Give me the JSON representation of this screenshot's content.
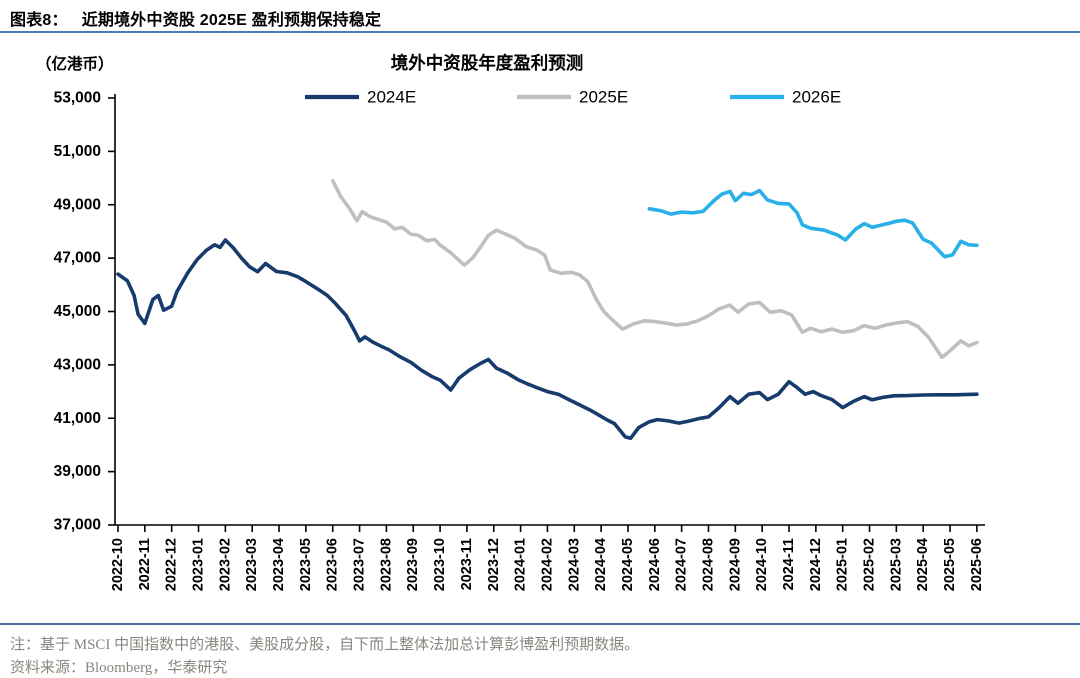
{
  "figure": {
    "caption_label": "图表8：",
    "caption_text": "近期境外中资股 2025E 盈利预期保持稳定",
    "unit_label": "（亿港币）",
    "chart_title": "境外中资股年度盈利预测",
    "note": "注：基于 MSCI 中国指数中的港股、美股成分股，自下而上整体法加总计算彭博盈利预期数据。",
    "source": "资料来源：Bloomberg，华泰研究"
  },
  "colors": {
    "navy": "#173b6c",
    "gray": "#bfbfbf",
    "cyan": "#29b0e8",
    "caption_rule": "#4a7cba",
    "note_rule": "#4d6f9e",
    "note_text": "#87867f",
    "axis": "#000000"
  },
  "chart_data": {
    "type": "line",
    "title": "境外中资股年度盈利预测",
    "ylabel": "（亿港币）",
    "ylim": [
      37000,
      53000
    ],
    "ytick_step": 2000,
    "ytick_labels": [
      "37,000",
      "39,000",
      "41,000",
      "43,000",
      "45,000",
      "47,000",
      "49,000",
      "51,000",
      "53,000"
    ],
    "grid": false,
    "legend_position": "top",
    "x_months": [
      "2022-10",
      "2022-11",
      "2022-12",
      "2023-01",
      "2023-02",
      "2023-03",
      "2023-04",
      "2023-05",
      "2023-06",
      "2023-07",
      "2023-08",
      "2023-09",
      "2023-10",
      "2023-11",
      "2023-12",
      "2024-01",
      "2024-02",
      "2024-03",
      "2024-04",
      "2024-05",
      "2024-06",
      "2024-07",
      "2024-08",
      "2024-09",
      "2024-10",
      "2024-11",
      "2024-12",
      "2025-01",
      "2025-02",
      "2025-03",
      "2025-04",
      "2025-05",
      "2025-06"
    ],
    "x_unit": "month_index_from_2022-10",
    "series": [
      {
        "name": "2024E",
        "color_key": "navy",
        "points": [
          [
            0,
            46400
          ],
          [
            0.35,
            46150
          ],
          [
            0.6,
            45600
          ],
          [
            0.75,
            44900
          ],
          [
            1.0,
            44550
          ],
          [
            1.3,
            45450
          ],
          [
            1.5,
            45600
          ],
          [
            1.7,
            45050
          ],
          [
            2.0,
            45200
          ],
          [
            2.2,
            45750
          ],
          [
            2.6,
            46450
          ],
          [
            2.95,
            46950
          ],
          [
            3.3,
            47300
          ],
          [
            3.6,
            47500
          ],
          [
            3.8,
            47400
          ],
          [
            4.0,
            47680
          ],
          [
            4.3,
            47380
          ],
          [
            4.6,
            47000
          ],
          [
            4.9,
            46680
          ],
          [
            5.2,
            46490
          ],
          [
            5.5,
            46800
          ],
          [
            5.9,
            46500
          ],
          [
            6.3,
            46450
          ],
          [
            6.7,
            46300
          ],
          [
            7.0,
            46120
          ],
          [
            7.4,
            45870
          ],
          [
            7.8,
            45600
          ],
          [
            8.1,
            45300
          ],
          [
            8.5,
            44850
          ],
          [
            8.8,
            44300
          ],
          [
            9.0,
            43900
          ],
          [
            9.2,
            44050
          ],
          [
            9.5,
            43850
          ],
          [
            9.8,
            43700
          ],
          [
            10.1,
            43560
          ],
          [
            10.5,
            43310
          ],
          [
            10.9,
            43100
          ],
          [
            11.3,
            42800
          ],
          [
            11.7,
            42560
          ],
          [
            12.0,
            42430
          ],
          [
            12.4,
            42060
          ],
          [
            12.7,
            42500
          ],
          [
            13.1,
            42810
          ],
          [
            13.5,
            43050
          ],
          [
            13.8,
            43200
          ],
          [
            14.1,
            42880
          ],
          [
            14.5,
            42690
          ],
          [
            14.9,
            42450
          ],
          [
            15.2,
            42310
          ],
          [
            15.6,
            42150
          ],
          [
            16.0,
            42000
          ],
          [
            16.4,
            41900
          ],
          [
            16.8,
            41700
          ],
          [
            17.2,
            41500
          ],
          [
            17.6,
            41300
          ],
          [
            17.9,
            41130
          ],
          [
            18.2,
            40950
          ],
          [
            18.5,
            40800
          ],
          [
            18.9,
            40300
          ],
          [
            19.1,
            40250
          ],
          [
            19.4,
            40650
          ],
          [
            19.8,
            40870
          ],
          [
            20.1,
            40950
          ],
          [
            20.5,
            40900
          ],
          [
            20.9,
            40820
          ],
          [
            21.3,
            40900
          ],
          [
            21.7,
            41000
          ],
          [
            22.0,
            41050
          ],
          [
            22.4,
            41400
          ],
          [
            22.8,
            41810
          ],
          [
            23.1,
            41560
          ],
          [
            23.5,
            41900
          ],
          [
            23.9,
            41960
          ],
          [
            24.2,
            41700
          ],
          [
            24.6,
            41900
          ],
          [
            25.0,
            42370
          ],
          [
            25.3,
            42150
          ],
          [
            25.6,
            41900
          ],
          [
            25.9,
            42000
          ],
          [
            26.2,
            41850
          ],
          [
            26.6,
            41700
          ],
          [
            27.0,
            41400
          ],
          [
            27.4,
            41630
          ],
          [
            27.8,
            41810
          ],
          [
            28.1,
            41690
          ],
          [
            28.5,
            41780
          ],
          [
            28.9,
            41840
          ],
          [
            29.4,
            41850
          ],
          [
            30.0,
            41870
          ],
          [
            30.6,
            41880
          ],
          [
            31.2,
            41880
          ],
          [
            32.0,
            41900
          ]
        ]
      },
      {
        "name": "2025E",
        "color_key": "gray",
        "points": [
          [
            8.0,
            49900
          ],
          [
            8.3,
            49300
          ],
          [
            8.6,
            48900
          ],
          [
            8.9,
            48400
          ],
          [
            9.1,
            48740
          ],
          [
            9.4,
            48550
          ],
          [
            9.7,
            48450
          ],
          [
            10.0,
            48350
          ],
          [
            10.3,
            48100
          ],
          [
            10.6,
            48150
          ],
          [
            10.9,
            47900
          ],
          [
            11.2,
            47850
          ],
          [
            11.5,
            47650
          ],
          [
            11.8,
            47700
          ],
          [
            12.0,
            47490
          ],
          [
            12.4,
            47200
          ],
          [
            12.9,
            46740
          ],
          [
            13.2,
            46990
          ],
          [
            13.5,
            47400
          ],
          [
            13.8,
            47850
          ],
          [
            14.1,
            48050
          ],
          [
            14.4,
            47920
          ],
          [
            14.8,
            47740
          ],
          [
            15.2,
            47430
          ],
          [
            15.6,
            47300
          ],
          [
            15.9,
            47110
          ],
          [
            16.1,
            46560
          ],
          [
            16.5,
            46430
          ],
          [
            16.9,
            46470
          ],
          [
            17.2,
            46370
          ],
          [
            17.5,
            46120
          ],
          [
            17.8,
            45490
          ],
          [
            18.1,
            45000
          ],
          [
            18.4,
            44700
          ],
          [
            18.8,
            44340
          ],
          [
            19.2,
            44530
          ],
          [
            19.6,
            44650
          ],
          [
            20.0,
            44620
          ],
          [
            20.4,
            44570
          ],
          [
            20.8,
            44490
          ],
          [
            21.2,
            44530
          ],
          [
            21.6,
            44650
          ],
          [
            22.0,
            44840
          ],
          [
            22.4,
            45100
          ],
          [
            22.8,
            45240
          ],
          [
            23.1,
            44970
          ],
          [
            23.5,
            45280
          ],
          [
            23.9,
            45340
          ],
          [
            24.3,
            44970
          ],
          [
            24.7,
            45030
          ],
          [
            25.1,
            44870
          ],
          [
            25.5,
            44220
          ],
          [
            25.8,
            44370
          ],
          [
            26.2,
            44240
          ],
          [
            26.6,
            44340
          ],
          [
            27.0,
            44220
          ],
          [
            27.4,
            44280
          ],
          [
            27.8,
            44470
          ],
          [
            28.2,
            44370
          ],
          [
            28.6,
            44490
          ],
          [
            29.0,
            44570
          ],
          [
            29.4,
            44620
          ],
          [
            29.8,
            44440
          ],
          [
            30.2,
            44030
          ],
          [
            30.7,
            43280
          ],
          [
            31.0,
            43530
          ],
          [
            31.4,
            43900
          ],
          [
            31.7,
            43710
          ],
          [
            32.0,
            43840
          ]
        ]
      },
      {
        "name": "2026E",
        "color_key": "cyan",
        "points": [
          [
            19.8,
            48850
          ],
          [
            20.2,
            48780
          ],
          [
            20.6,
            48650
          ],
          [
            21.0,
            48730
          ],
          [
            21.4,
            48700
          ],
          [
            21.8,
            48750
          ],
          [
            22.2,
            49150
          ],
          [
            22.5,
            49400
          ],
          [
            22.8,
            49500
          ],
          [
            23.0,
            49150
          ],
          [
            23.3,
            49430
          ],
          [
            23.6,
            49380
          ],
          [
            23.9,
            49530
          ],
          [
            24.2,
            49180
          ],
          [
            24.6,
            49050
          ],
          [
            25.0,
            49030
          ],
          [
            25.3,
            48700
          ],
          [
            25.5,
            48250
          ],
          [
            25.8,
            48120
          ],
          [
            26.3,
            48050
          ],
          [
            26.8,
            47870
          ],
          [
            27.1,
            47680
          ],
          [
            27.5,
            48100
          ],
          [
            27.8,
            48290
          ],
          [
            28.1,
            48160
          ],
          [
            28.5,
            48250
          ],
          [
            29.0,
            48380
          ],
          [
            29.3,
            48420
          ],
          [
            29.6,
            48320
          ],
          [
            30.0,
            47700
          ],
          [
            30.3,
            47570
          ],
          [
            30.8,
            47050
          ],
          [
            31.1,
            47130
          ],
          [
            31.4,
            47630
          ],
          [
            31.7,
            47500
          ],
          [
            32.0,
            47480
          ]
        ]
      }
    ]
  }
}
